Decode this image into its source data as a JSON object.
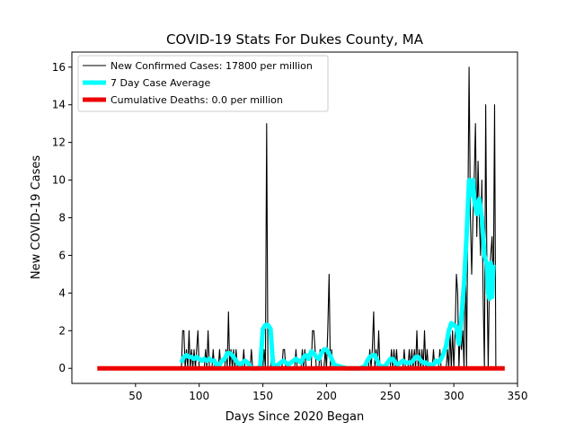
{
  "chart_data": {
    "type": "line",
    "title": "COVID-19 Stats For Dukes County, MA",
    "xlabel": "Days Since 2020 Began",
    "ylabel": "New COVID-19 Cases",
    "xlim": [
      0,
      350
    ],
    "ylim": [
      -0.8,
      16.8
    ],
    "x_ticks": [
      50,
      100,
      150,
      200,
      250,
      300,
      350
    ],
    "y_ticks": [
      0,
      2,
      4,
      6,
      8,
      10,
      12,
      14,
      16
    ],
    "grid": false,
    "legend_position": "top-left",
    "series": [
      {
        "name": "New Confirmed Cases: 17800 per million",
        "color": "#000000",
        "style": "thin-line",
        "points": [
          [
            86,
            0
          ],
          [
            87,
            2
          ],
          [
            88,
            2
          ],
          [
            89,
            0
          ],
          [
            90,
            1
          ],
          [
            91,
            0
          ],
          [
            92,
            2
          ],
          [
            93,
            0
          ],
          [
            94,
            1
          ],
          [
            95,
            0
          ],
          [
            96,
            1
          ],
          [
            97,
            0
          ],
          [
            98,
            1
          ],
          [
            99,
            2
          ],
          [
            100,
            0
          ],
          [
            104,
            0
          ],
          [
            105,
            1
          ],
          [
            106,
            0
          ],
          [
            107,
            2
          ],
          [
            108,
            0
          ],
          [
            110,
            0
          ],
          [
            111,
            1
          ],
          [
            112,
            0
          ],
          [
            115,
            0
          ],
          [
            116,
            1
          ],
          [
            117,
            0
          ],
          [
            120,
            0
          ],
          [
            121,
            1
          ],
          [
            122,
            0
          ],
          [
            123,
            3
          ],
          [
            124,
            0
          ],
          [
            125,
            1
          ],
          [
            126,
            0
          ],
          [
            127,
            1
          ],
          [
            128,
            0
          ],
          [
            129,
            1
          ],
          [
            130,
            0
          ],
          [
            134,
            0
          ],
          [
            135,
            1
          ],
          [
            136,
            0
          ],
          [
            140,
            0
          ],
          [
            141,
            1
          ],
          [
            142,
            0
          ],
          [
            150,
            0
          ],
          [
            151,
            1
          ],
          [
            152,
            0
          ],
          [
            153,
            13
          ],
          [
            154,
            0
          ],
          [
            156,
            0
          ],
          [
            157,
            1
          ],
          [
            158,
            0
          ],
          [
            165,
            0
          ],
          [
            166,
            1
          ],
          [
            167,
            1
          ],
          [
            168,
            0
          ],
          [
            175,
            0
          ],
          [
            176,
            1
          ],
          [
            177,
            0
          ],
          [
            180,
            0
          ],
          [
            181,
            1
          ],
          [
            182,
            0
          ],
          [
            183,
            1
          ],
          [
            184,
            0
          ],
          [
            188,
            0
          ],
          [
            189,
            2
          ],
          [
            190,
            2
          ],
          [
            191,
            1
          ],
          [
            192,
            0
          ],
          [
            194,
            0
          ],
          [
            195,
            1
          ],
          [
            196,
            0
          ],
          [
            198,
            0
          ],
          [
            199,
            1
          ],
          [
            200,
            0
          ],
          [
            201,
            2
          ],
          [
            202,
            5
          ],
          [
            203,
            0
          ],
          [
            204,
            1
          ],
          [
            205,
            0
          ],
          [
            233,
            0
          ],
          [
            234,
            1
          ],
          [
            235,
            0
          ],
          [
            236,
            1
          ],
          [
            237,
            3
          ],
          [
            238,
            0
          ],
          [
            239,
            1
          ],
          [
            240,
            0
          ],
          [
            241,
            2
          ],
          [
            242,
            0
          ],
          [
            250,
            0
          ],
          [
            251,
            1
          ],
          [
            252,
            0
          ],
          [
            253,
            1
          ],
          [
            254,
            0
          ],
          [
            255,
            1
          ],
          [
            256,
            0
          ],
          [
            260,
            0
          ],
          [
            261,
            1
          ],
          [
            262,
            0
          ],
          [
            264,
            0
          ],
          [
            265,
            1
          ],
          [
            266,
            0
          ],
          [
            267,
            1
          ],
          [
            268,
            0
          ],
          [
            269,
            1
          ],
          [
            270,
            0
          ],
          [
            271,
            2
          ],
          [
            272,
            0
          ],
          [
            273,
            1
          ],
          [
            274,
            0
          ],
          [
            275,
            1
          ],
          [
            276,
            0
          ],
          [
            277,
            2
          ],
          [
            278,
            0
          ],
          [
            279,
            1
          ],
          [
            280,
            0
          ],
          [
            283,
            0
          ],
          [
            284,
            1
          ],
          [
            285,
            0
          ],
          [
            288,
            0
          ],
          [
            289,
            1
          ],
          [
            290,
            0
          ],
          [
            294,
            0
          ],
          [
            295,
            1
          ],
          [
            296,
            0
          ],
          [
            297,
            2
          ],
          [
            298,
            0
          ],
          [
            299,
            2
          ],
          [
            300,
            0
          ],
          [
            301,
            2
          ],
          [
            302,
            5
          ],
          [
            303,
            4
          ],
          [
            304,
            0
          ],
          [
            305,
            2
          ],
          [
            306,
            1
          ],
          [
            307,
            2
          ],
          [
            308,
            0
          ],
          [
            309,
            7
          ],
          [
            310,
            0
          ],
          [
            311,
            8
          ],
          [
            312,
            16
          ],
          [
            313,
            8
          ],
          [
            314,
            5
          ],
          [
            315,
            8
          ],
          [
            316,
            10
          ],
          [
            317,
            13
          ],
          [
            318,
            7
          ],
          [
            319,
            11
          ],
          [
            320,
            8
          ],
          [
            321,
            6
          ],
          [
            322,
            10
          ],
          [
            323,
            4
          ],
          [
            324,
            0
          ],
          [
            325,
            14
          ],
          [
            326,
            5
          ],
          [
            327,
            0
          ],
          [
            328,
            5
          ],
          [
            329,
            6
          ],
          [
            330,
            7
          ],
          [
            331,
            4
          ],
          [
            332,
            14
          ],
          [
            333,
            0
          ]
        ]
      },
      {
        "name": "7 Day Case Average",
        "color": "#00ffff",
        "style": "thick-line",
        "points": [
          [
            86,
            0.3
          ],
          [
            88,
            0.6
          ],
          [
            90,
            0.7
          ],
          [
            92,
            0.6
          ],
          [
            94,
            0.6
          ],
          [
            96,
            0.5
          ],
          [
            98,
            0.6
          ],
          [
            100,
            0.5
          ],
          [
            102,
            0.4
          ],
          [
            104,
            0.5
          ],
          [
            106,
            0.4
          ],
          [
            108,
            0.5
          ],
          [
            110,
            0.4
          ],
          [
            112,
            0.4
          ],
          [
            114,
            0.1
          ],
          [
            116,
            0.2
          ],
          [
            118,
            0.4
          ],
          [
            120,
            0.5
          ],
          [
            122,
            0.8
          ],
          [
            124,
            0.8
          ],
          [
            126,
            0.7
          ],
          [
            128,
            0.5
          ],
          [
            130,
            0.3
          ],
          [
            132,
            0.2
          ],
          [
            134,
            0.3
          ],
          [
            136,
            0.4
          ],
          [
            138,
            0.3
          ],
          [
            140,
            0.1
          ],
          [
            142,
            0.0
          ],
          [
            146,
            0.0
          ],
          [
            148,
            0.1
          ],
          [
            150,
            2.1
          ],
          [
            152,
            2.3
          ],
          [
            154,
            2.3
          ],
          [
            156,
            2.1
          ],
          [
            158,
            0.2
          ],
          [
            160,
            0.1
          ],
          [
            162,
            0.2
          ],
          [
            164,
            0.3
          ],
          [
            166,
            0.4
          ],
          [
            168,
            0.3
          ],
          [
            170,
            0.2
          ],
          [
            172,
            0.3
          ],
          [
            174,
            0.4
          ],
          [
            176,
            0.5
          ],
          [
            178,
            0.4
          ],
          [
            180,
            0.3
          ],
          [
            182,
            0.6
          ],
          [
            184,
            0.7
          ],
          [
            186,
            0.5
          ],
          [
            188,
            0.9
          ],
          [
            190,
            0.8
          ],
          [
            192,
            0.6
          ],
          [
            194,
            0.5
          ],
          [
            196,
            0.8
          ],
          [
            198,
            1.0
          ],
          [
            200,
            1.0
          ],
          [
            202,
            0.8
          ],
          [
            204,
            0.5
          ],
          [
            206,
            0.2
          ],
          [
            210,
            0.1
          ],
          [
            216,
            0.0
          ],
          [
            226,
            0.0
          ],
          [
            230,
            0.1
          ],
          [
            232,
            0.4
          ],
          [
            234,
            0.6
          ],
          [
            236,
            0.7
          ],
          [
            238,
            0.7
          ],
          [
            240,
            0.4
          ],
          [
            242,
            0.1
          ],
          [
            246,
            0.1
          ],
          [
            248,
            0.3
          ],
          [
            250,
            0.5
          ],
          [
            252,
            0.5
          ],
          [
            254,
            0.3
          ],
          [
            256,
            0.2
          ],
          [
            258,
            0.3
          ],
          [
            260,
            0.4
          ],
          [
            262,
            0.3
          ],
          [
            264,
            0.3
          ],
          [
            266,
            0.3
          ],
          [
            268,
            0.4
          ],
          [
            270,
            0.6
          ],
          [
            272,
            0.6
          ],
          [
            274,
            0.4
          ],
          [
            276,
            0.3
          ],
          [
            278,
            0.3
          ],
          [
            280,
            0.2
          ],
          [
            284,
            0.2
          ],
          [
            286,
            0.4
          ],
          [
            288,
            0.3
          ],
          [
            290,
            0.5
          ],
          [
            292,
            0.8
          ],
          [
            294,
            1.2
          ],
          [
            296,
            2.0
          ],
          [
            298,
            2.4
          ],
          [
            300,
            2.3
          ],
          [
            302,
            2.2
          ],
          [
            304,
            1.3
          ],
          [
            306,
            2.7
          ],
          [
            308,
            4.5
          ],
          [
            310,
            7.0
          ],
          [
            312,
            10.0
          ],
          [
            314,
            9.2
          ],
          [
            315,
            10.0
          ],
          [
            316,
            9.0
          ],
          [
            318,
            8.2
          ],
          [
            320,
            9.0
          ],
          [
            322,
            8.0
          ],
          [
            324,
            6.0
          ],
          [
            326,
            5.5
          ],
          [
            327,
            4.0
          ],
          [
            328,
            3.7
          ],
          [
            329,
            5.6
          ],
          [
            330,
            3.8
          ],
          [
            331,
            5.5
          ]
        ]
      },
      {
        "name": "Cumulative Deaths: 0.0 per million",
        "color": "#ee0000",
        "style": "thick-line",
        "points": [
          [
            20,
            0
          ],
          [
            340,
            0
          ]
        ]
      }
    ]
  }
}
